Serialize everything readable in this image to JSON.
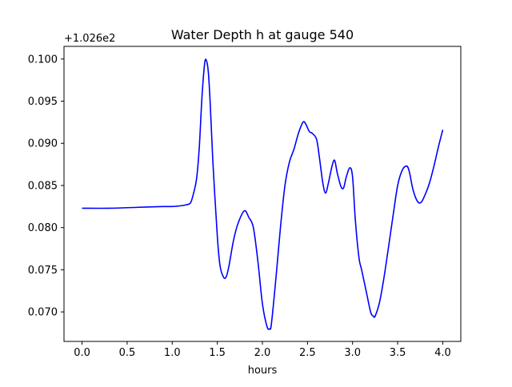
{
  "chart_data": {
    "type": "line",
    "title": "Water Depth h at gauge 540",
    "xlabel": "hours",
    "ylabel": "",
    "offset_label": "+1.026e2",
    "xlim": [
      -0.2,
      4.2
    ],
    "ylim": [
      0.0665,
      0.1015
    ],
    "xticks": [
      0.0,
      0.5,
      1.0,
      1.5,
      2.0,
      2.5,
      3.0,
      3.5,
      4.0
    ],
    "xtick_labels": [
      "0.0",
      "0.5",
      "1.0",
      "1.5",
      "2.0",
      "2.5",
      "3.0",
      "3.5",
      "4.0"
    ],
    "yticks": [
      0.07,
      0.075,
      0.08,
      0.085,
      0.09,
      0.095,
      0.1
    ],
    "ytick_labels": [
      "0.070",
      "0.075",
      "0.080",
      "0.085",
      "0.090",
      "0.095",
      "0.100"
    ],
    "grid": false,
    "legend": "none",
    "series": [
      {
        "color": "#0000ff",
        "x": [
          0.0,
          0.3,
          0.6,
          0.9,
          1.0,
          1.1,
          1.15,
          1.2,
          1.23,
          1.27,
          1.3,
          1.33,
          1.36,
          1.38,
          1.4,
          1.42,
          1.45,
          1.5,
          1.53,
          1.57,
          1.6,
          1.63,
          1.68,
          1.73,
          1.8,
          1.85,
          1.9,
          1.95,
          2.0,
          2.05,
          2.08,
          2.1,
          2.15,
          2.2,
          2.25,
          2.3,
          2.35,
          2.4,
          2.45,
          2.48,
          2.52,
          2.55,
          2.6,
          2.63,
          2.67,
          2.7,
          2.73,
          2.77,
          2.8,
          2.83,
          2.87,
          2.9,
          2.93,
          2.97,
          3.0,
          3.03,
          3.07,
          3.1,
          3.15,
          3.2,
          3.23,
          3.25,
          3.3,
          3.35,
          3.4,
          3.45,
          3.5,
          3.55,
          3.6,
          3.63,
          3.67,
          3.72,
          3.76,
          3.8,
          3.85,
          3.9,
          3.95,
          4.0
        ],
        "y": [
          0.0823,
          0.0823,
          0.0824,
          0.0825,
          0.0825,
          0.0826,
          0.0827,
          0.0829,
          0.0838,
          0.0858,
          0.0895,
          0.0955,
          0.0995,
          0.0998,
          0.0985,
          0.095,
          0.088,
          0.079,
          0.0755,
          0.0741,
          0.0742,
          0.0755,
          0.0785,
          0.0805,
          0.082,
          0.0812,
          0.08,
          0.076,
          0.071,
          0.0683,
          0.068,
          0.0686,
          0.074,
          0.08,
          0.085,
          0.0878,
          0.0893,
          0.0912,
          0.0925,
          0.0923,
          0.0914,
          0.0912,
          0.0905,
          0.0885,
          0.0853,
          0.0841,
          0.0852,
          0.0872,
          0.088,
          0.0865,
          0.0849,
          0.0847,
          0.086,
          0.0871,
          0.086,
          0.081,
          0.0765,
          0.075,
          0.0725,
          0.07,
          0.0695,
          0.0695,
          0.0712,
          0.0742,
          0.0778,
          0.0815,
          0.085,
          0.0868,
          0.0873,
          0.0866,
          0.0845,
          0.0831,
          0.083,
          0.0838,
          0.0852,
          0.0872,
          0.0895,
          0.0916
        ]
      }
    ]
  }
}
